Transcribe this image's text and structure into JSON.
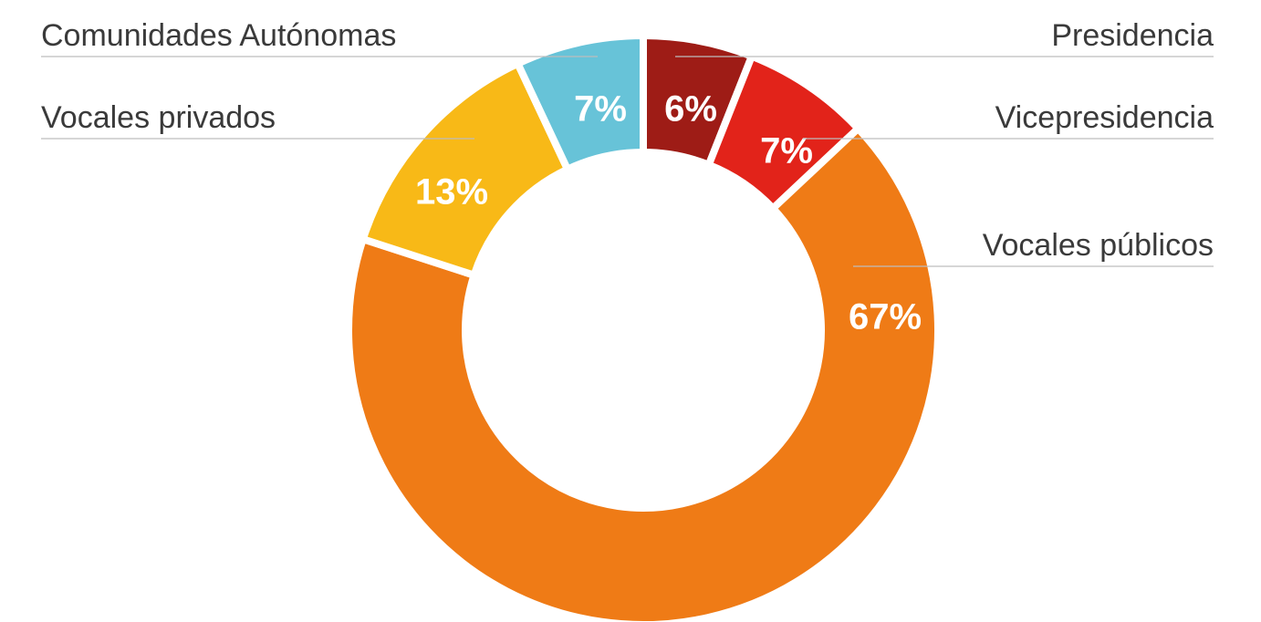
{
  "chart_data": {
    "type": "donut",
    "categories": [
      "Presidencia",
      "Vicepresidencia",
      "Vocales públicos",
      "Vocales privados",
      "Comunidades Autónomas"
    ],
    "values": [
      6,
      7,
      67,
      13,
      7
    ],
    "value_labels": [
      "6%",
      "7%",
      "67%",
      "13%",
      "7%"
    ],
    "colors": [
      "#9e1c16",
      "#e2231a",
      "#ef7b16",
      "#f8b917",
      "#67c3d8"
    ]
  }
}
